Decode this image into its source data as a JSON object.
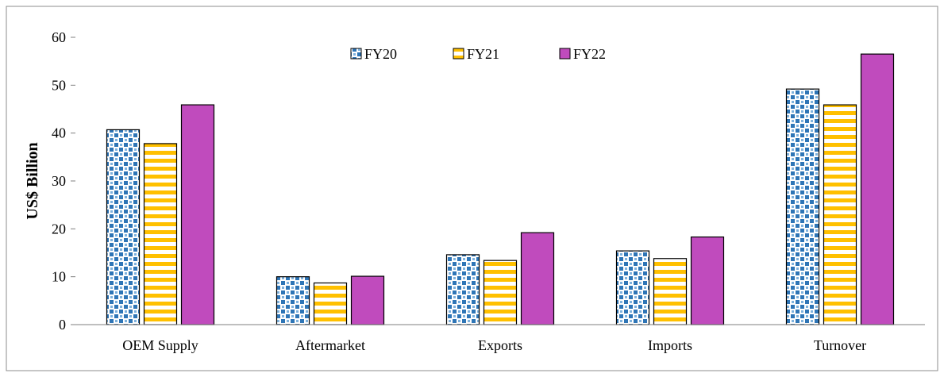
{
  "chart_data": {
    "type": "bar",
    "title": "",
    "xlabel": "",
    "ylabel": "US$ Billion",
    "ylim": [
      0,
      60
    ],
    "yticks": [
      0,
      10,
      20,
      30,
      40,
      50,
      60
    ],
    "grid": false,
    "legend_position": "top-center",
    "categories": [
      "OEM Supply",
      "Aftermarket",
      "Exports",
      "Imports",
      "Turnover"
    ],
    "series": [
      {
        "name": "FY20",
        "values": [
          40.7,
          10.0,
          14.6,
          15.4,
          49.2
        ],
        "color": "#2e75b6",
        "pattern": "dots"
      },
      {
        "name": "FY21",
        "values": [
          37.8,
          8.7,
          13.4,
          13.8,
          45.9
        ],
        "color": "#ffc000",
        "pattern": "stripes"
      },
      {
        "name": "FY22",
        "values": [
          45.9,
          10.1,
          19.2,
          18.3,
          56.5
        ],
        "color": "#c04bbd",
        "pattern": "solid"
      }
    ]
  }
}
